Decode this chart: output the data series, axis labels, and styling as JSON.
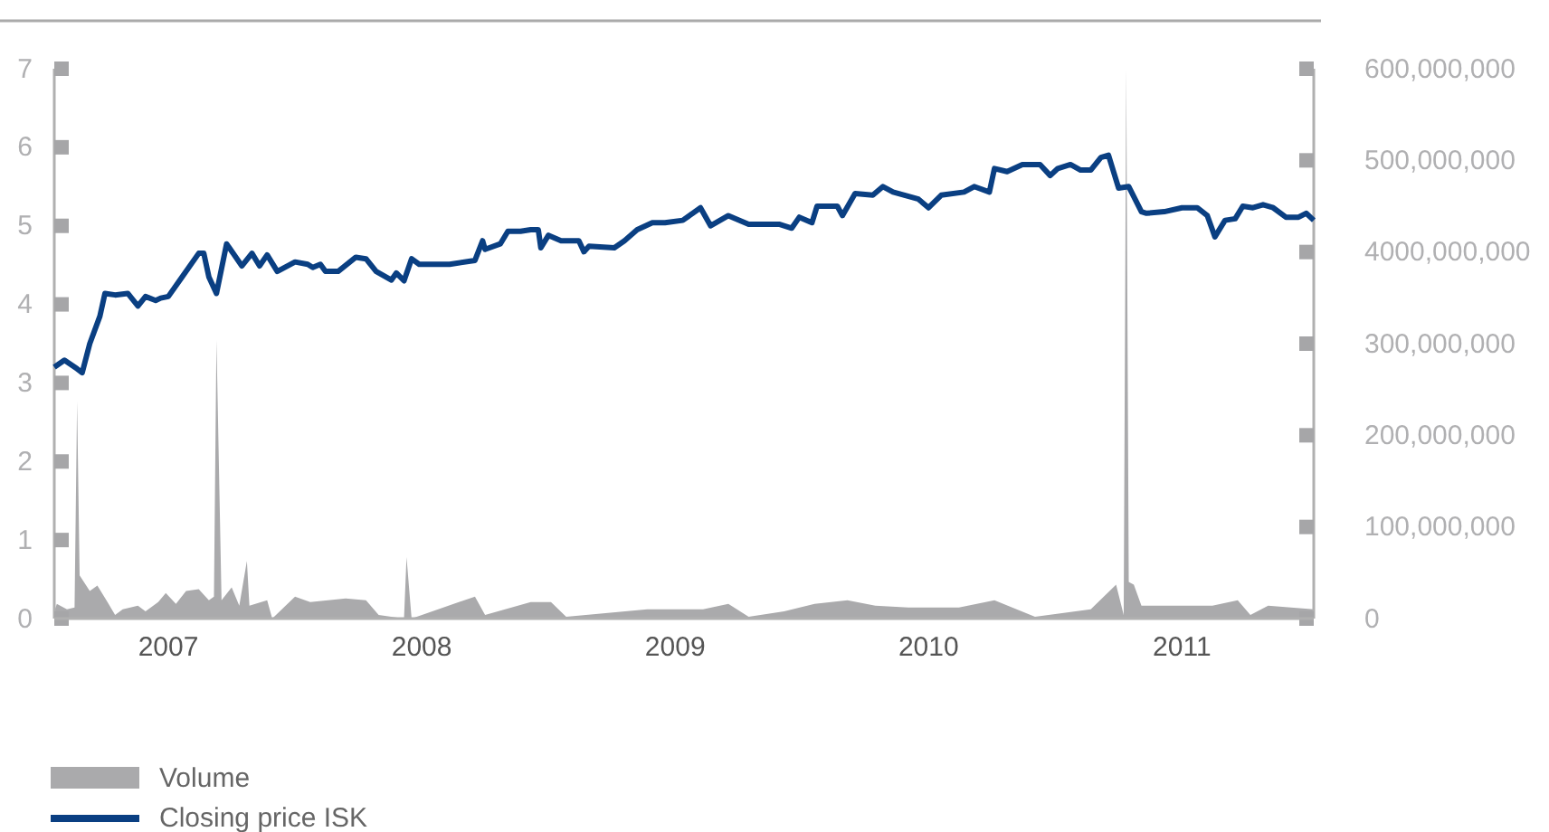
{
  "chart_data": {
    "type": "line",
    "xlim": [
      2006.55,
      2011.52
    ],
    "xticks": [
      2007,
      2008,
      2009,
      2010,
      2011
    ],
    "ylim": [
      0,
      7
    ],
    "yticks": [
      0,
      1,
      2,
      3,
      4,
      5,
      6,
      7
    ],
    "y2lim": [
      0,
      600000000
    ],
    "y2ticks": [
      {
        "value": 0,
        "label": "0"
      },
      {
        "value": 100000000,
        "label": "100,000,000"
      },
      {
        "value": 200000000,
        "label": "200,000,000"
      },
      {
        "value": 300000000,
        "label": "300,000,000"
      },
      {
        "value": 400000000,
        "label": "4000,000,000"
      },
      {
        "value": 500000000,
        "label": "500,000,000"
      },
      {
        "value": 600000000,
        "label": "600,000,000"
      }
    ],
    "grid": false,
    "legend": "bottom left",
    "series": [
      {
        "name": "Volume",
        "type": "area",
        "axis": "y2",
        "color": "#aaaaac",
        "x": [
          2006.55,
          2006.56,
          2006.6,
          2006.63,
          2006.64,
          2006.65,
          2006.69,
          2006.72,
          2006.76,
          2006.79,
          2006.82,
          2006.88,
          2006.91,
          2006.96,
          2006.99,
          2007.03,
          2007.07,
          2007.12,
          2007.16,
          2007.18,
          2007.19,
          2007.21,
          2007.25,
          2007.28,
          2007.31,
          2007.32,
          2007.39,
          2007.41,
          2007.5,
          2007.56,
          2007.7,
          2007.78,
          2007.83,
          2007.93,
          2007.94,
          2007.96,
          2008.21,
          2008.25,
          2008.43,
          2008.51,
          2008.57,
          2008.89,
          2009.11,
          2009.21,
          2009.29,
          2009.43,
          2009.55,
          2009.68,
          2009.79,
          2009.92,
          2010.12,
          2010.26,
          2010.42,
          2010.64,
          2010.74,
          2010.77,
          2010.78,
          2010.79,
          2010.81,
          2010.84,
          2011.12,
          2011.22,
          2011.27,
          2011.34,
          2011.52
        ],
        "values": [
          8000000,
          16000000,
          10000000,
          12000000,
          237000000,
          47000000,
          30000000,
          36000000,
          18000000,
          4000000,
          10000000,
          14000000,
          8000000,
          18000000,
          28000000,
          16000000,
          30000000,
          32000000,
          20000000,
          24000000,
          304000000,
          20000000,
          34000000,
          14000000,
          63000000,
          14000000,
          20000000,
          0,
          24000000,
          18000000,
          22000000,
          20000000,
          4000000,
          0,
          67000000,
          0,
          24000000,
          4000000,
          18000000,
          18000000,
          2000000,
          10000000,
          10000000,
          16000000,
          2000000,
          8000000,
          16000000,
          20000000,
          14000000,
          12000000,
          12000000,
          20000000,
          2000000,
          10000000,
          37000000,
          4000000,
          600000000,
          40000000,
          37000000,
          14000000,
          14000000,
          20000000,
          4000000,
          14000000,
          10000000
        ]
      },
      {
        "name": "Closing price ISK",
        "axis": "y",
        "color": "#0a3f82",
        "x": [
          2006.55,
          2006.59,
          2006.64,
          2006.66,
          2006.69,
          2006.73,
          2006.75,
          2006.79,
          2006.84,
          2006.88,
          2006.91,
          2006.95,
          2006.97,
          2007.0,
          2007.05,
          2007.12,
          2007.14,
          2007.16,
          2007.19,
          2007.23,
          2007.29,
          2007.33,
          2007.36,
          2007.39,
          2007.43,
          2007.5,
          2007.55,
          2007.57,
          2007.6,
          2007.62,
          2007.67,
          2007.74,
          2007.78,
          2007.82,
          2007.88,
          2007.9,
          2007.93,
          2007.96,
          2007.99,
          2008.11,
          2008.21,
          2008.24,
          2008.25,
          2008.31,
          2008.34,
          2008.39,
          2008.43,
          2008.46,
          2008.47,
          2008.5,
          2008.55,
          2008.62,
          2008.64,
          2008.66,
          2008.76,
          2008.8,
          2008.85,
          2008.91,
          2008.96,
          2009.03,
          2009.1,
          2009.14,
          2009.21,
          2009.29,
          2009.41,
          2009.46,
          2009.49,
          2009.54,
          2009.56,
          2009.64,
          2009.66,
          2009.71,
          2009.78,
          2009.82,
          2009.86,
          2009.96,
          2010.0,
          2010.05,
          2010.14,
          2010.18,
          2010.24,
          2010.26,
          2010.31,
          2010.37,
          2010.44,
          2010.48,
          2010.51,
          2010.56,
          2010.6,
          2010.64,
          2010.68,
          2010.71,
          2010.75,
          2010.79,
          2010.84,
          2010.86,
          2010.93,
          2011.0,
          2011.06,
          2011.1,
          2011.13,
          2011.17,
          2011.21,
          2011.24,
          2011.28,
          2011.32,
          2011.36,
          2011.41,
          2011.46,
          2011.49,
          2011.52
        ],
        "values": [
          3.2,
          3.29,
          3.18,
          3.13,
          3.5,
          3.85,
          4.14,
          4.12,
          4.14,
          3.98,
          4.1,
          4.05,
          4.08,
          4.1,
          4.33,
          4.65,
          4.65,
          4.35,
          4.14,
          4.77,
          4.49,
          4.65,
          4.49,
          4.63,
          4.42,
          4.54,
          4.51,
          4.47,
          4.51,
          4.42,
          4.42,
          4.6,
          4.58,
          4.42,
          4.31,
          4.4,
          4.3,
          4.58,
          4.51,
          4.51,
          4.56,
          4.81,
          4.7,
          4.77,
          4.93,
          4.93,
          4.95,
          4.95,
          4.72,
          4.88,
          4.81,
          4.81,
          4.67,
          4.74,
          4.72,
          4.81,
          4.95,
          5.04,
          5.04,
          5.07,
          5.23,
          5.0,
          5.13,
          5.02,
          5.02,
          4.97,
          5.11,
          5.04,
          5.25,
          5.25,
          5.13,
          5.41,
          5.39,
          5.5,
          5.43,
          5.34,
          5.23,
          5.39,
          5.43,
          5.5,
          5.43,
          5.73,
          5.69,
          5.78,
          5.78,
          5.64,
          5.73,
          5.78,
          5.71,
          5.71,
          5.87,
          5.9,
          5.48,
          5.5,
          5.18,
          5.16,
          5.18,
          5.23,
          5.23,
          5.13,
          4.86,
          5.07,
          5.09,
          5.25,
          5.23,
          5.27,
          5.23,
          5.11,
          5.11,
          5.16,
          5.07
        ]
      }
    ]
  }
}
